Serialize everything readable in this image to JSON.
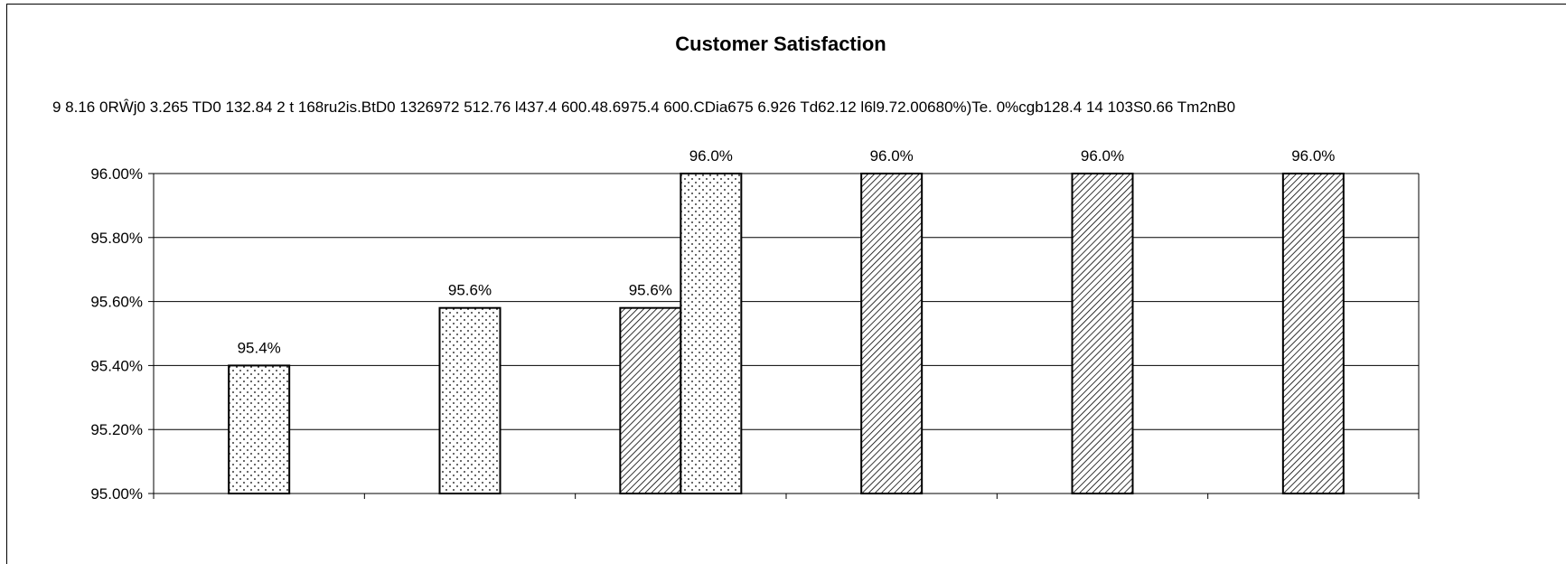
{
  "chart_data": {
    "type": "bar",
    "title": "Customer Satisfaction",
    "overlay_text": "9 8.16 0RŴj0 3.265 TD0 132.84 2 t 168ru2is.BtD0 1326972 512.76 l437.4 600.48.6975.4 600.CDia675 6.926 Td62.12 l6l9.72.00680%)Te. 0%cgb128.4 14 103S0.66 Tm2nB0",
    "ylim": [
      0.95,
      0.96
    ],
    "yticks": [
      "95.00%",
      "95.20%",
      "95.40%",
      "95.60%",
      "95.80%",
      "96.00%"
    ],
    "ytick_values": [
      0.95,
      0.952,
      0.954,
      0.956,
      0.958,
      0.96
    ],
    "grid": true,
    "categories": [
      "",
      "",
      "",
      "",
      "",
      ""
    ],
    "series": [
      {
        "pattern": "dots",
        "values": [
          0.954,
          0.9558,
          null,
          null,
          null,
          null
        ],
        "labels": [
          "95.4%",
          "95.6%",
          "",
          "",
          "",
          ""
        ]
      },
      {
        "pattern": "hatch",
        "values": [
          null,
          null,
          0.9558,
          0.96,
          0.96,
          0.96
        ],
        "labels": [
          "",
          "",
          "95.6%",
          "96.0%",
          "96.0%",
          "96.0%"
        ]
      },
      {
        "pattern": "dots",
        "values": [
          null,
          null,
          0.96,
          null,
          null,
          null
        ],
        "labels": [
          "",
          "",
          "96.0%",
          "",
          "",
          ""
        ]
      }
    ]
  }
}
